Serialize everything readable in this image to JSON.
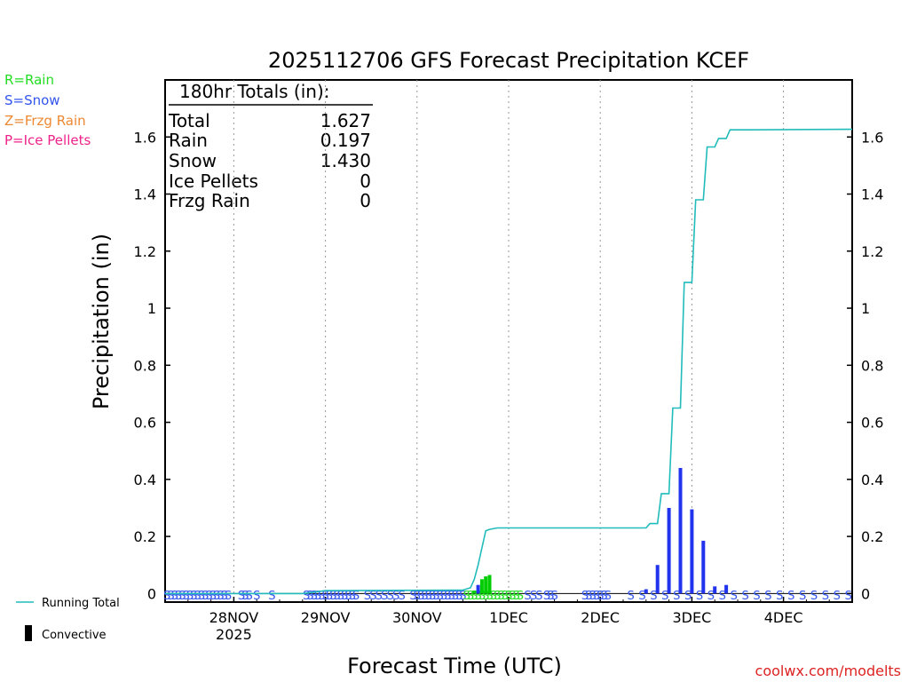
{
  "chart_data": {
    "type": "bar",
    "title": "2025112706 GFS Forecast Precipitation KCEF",
    "xlabel": "Forecast Time (UTC)",
    "ylabel": "Precipitation (in)",
    "ylim": [
      -0.03,
      1.8
    ],
    "yticks": [
      0,
      0.2,
      0.4,
      0.6,
      0.8,
      1,
      1.2,
      1.4,
      1.6
    ],
    "ytick_labels": [
      "0",
      "0.2",
      "0.4",
      "0.6",
      "0.8",
      "1",
      "1.2",
      "1.4",
      "1.6"
    ],
    "xlim_hours": [
      6,
      186
    ],
    "xticks": [
      {
        "hour": 24,
        "label": "28NOV",
        "sublabel": "2025"
      },
      {
        "hour": 48,
        "label": "29NOV",
        "sublabel": ""
      },
      {
        "hour": 72,
        "label": "30NOV",
        "sublabel": ""
      },
      {
        "hour": 96,
        "label": "1DEC",
        "sublabel": ""
      },
      {
        "hour": 120,
        "label": "2DEC",
        "sublabel": ""
      },
      {
        "hour": 144,
        "label": "3DEC",
        "sublabel": ""
      },
      {
        "hour": 168,
        "label": "4DEC",
        "sublabel": ""
      }
    ],
    "legend": [
      {
        "label": "R=Rain",
        "color": "#22dd22"
      },
      {
        "label": "S=Snow",
        "color": "#3355ee"
      },
      {
        "label": "Z=Frzg Rain",
        "color": "#ee8833"
      },
      {
        "label": "P=Ice Pellets",
        "color": "#ee2288"
      }
    ],
    "bottom_legend": {
      "running_total": "Running Total",
      "convective": "Convective"
    },
    "totals": {
      "header": "180hr Totals (in):",
      "rows": [
        {
          "label": "Total",
          "value": "1.627"
        },
        {
          "label": "Rain",
          "value": "0.197"
        },
        {
          "label": "Snow",
          "value": "1.430"
        },
        {
          "label": "Ice Pellets",
          "value": "0"
        },
        {
          "label": "Frzg Rain",
          "value": "0"
        }
      ]
    },
    "series": [
      {
        "name": "Rain",
        "color": "#00cc00",
        "bars": [
          {
            "hour": 87,
            "value": 0.01
          },
          {
            "hour": 89,
            "value": 0.05
          },
          {
            "hour": 90,
            "value": 0.06
          },
          {
            "hour": 91,
            "value": 0.065
          }
        ]
      },
      {
        "name": "Snow",
        "color": "#2233ee",
        "bars": [
          {
            "hour": 88,
            "value": 0.03
          },
          {
            "hour": 132,
            "value": 0.015
          },
          {
            "hour": 135,
            "value": 0.1
          },
          {
            "hour": 138,
            "value": 0.3
          },
          {
            "hour": 141,
            "value": 0.44
          },
          {
            "hour": 144,
            "value": 0.295
          },
          {
            "hour": 147,
            "value": 0.185
          },
          {
            "hour": 150,
            "value": 0.025
          },
          {
            "hour": 153,
            "value": 0.03
          }
        ]
      }
    ],
    "running_total": {
      "name": "Running Total",
      "color": "#22bbbb",
      "points": [
        [
          6,
          0
        ],
        [
          42,
          0
        ],
        [
          45,
          0.005
        ],
        [
          48,
          0.01
        ],
        [
          84,
          0.012
        ],
        [
          86,
          0.02
        ],
        [
          87,
          0.05
        ],
        [
          88,
          0.1
        ],
        [
          89,
          0.16
        ],
        [
          90,
          0.22
        ],
        [
          91,
          0.225
        ],
        [
          93,
          0.23
        ],
        [
          132,
          0.23
        ],
        [
          133,
          0.245
        ],
        [
          135,
          0.245
        ],
        [
          136,
          0.35
        ],
        [
          138,
          0.35
        ],
        [
          139,
          0.65
        ],
        [
          141,
          0.65
        ],
        [
          142,
          1.09
        ],
        [
          144,
          1.09
        ],
        [
          145,
          1.38
        ],
        [
          147,
          1.38
        ],
        [
          148,
          1.565
        ],
        [
          150,
          1.565
        ],
        [
          151,
          1.595
        ],
        [
          153,
          1.595
        ],
        [
          154,
          1.625
        ],
        [
          160,
          1.625
        ],
        [
          186,
          1.627
        ]
      ]
    },
    "ptype_strip": {
      "symbol": "S",
      "ranges": [
        {
          "start": 6.5,
          "end": 23,
          "step": 1
        },
        {
          "start": 26,
          "end": 28,
          "step": 1
        },
        {
          "start": 30,
          "end": 30,
          "step": 1
        },
        {
          "start": 34,
          "end": 34,
          "step": 1
        },
        {
          "start": 43,
          "end": 56,
          "step": 1
        },
        {
          "start": 59,
          "end": 68,
          "step": 1.5
        },
        {
          "start": 71,
          "end": 84,
          "step": 1
        },
        {
          "start": 101,
          "end": 104,
          "step": 1.5
        },
        {
          "start": 106,
          "end": 108,
          "step": 1
        },
        {
          "start": 116,
          "end": 122,
          "step": 1
        },
        {
          "start": 128,
          "end": 185,
          "step": 3
        }
      ],
      "rain_ranges": [
        {
          "start": 85,
          "end": 99,
          "step": 1
        }
      ]
    },
    "credit": "coolwx.com/modelts"
  }
}
